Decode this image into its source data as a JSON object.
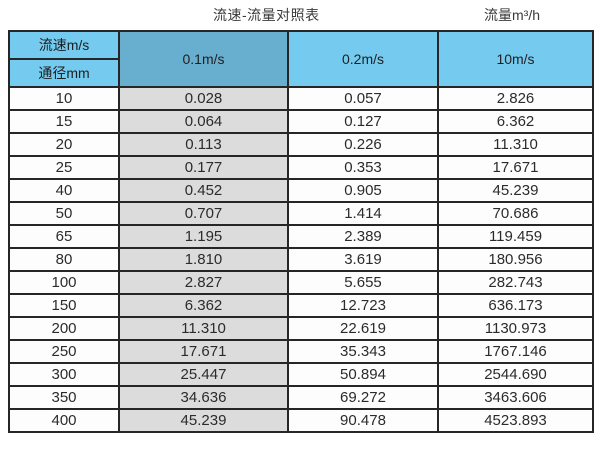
{
  "page": {
    "title": "流速-流量对照表",
    "unit_label": "流量m³/h"
  },
  "colors": {
    "header_blue": "#74cbef",
    "highlight_header_blue": "#68aecf",
    "highlight_column_gray": "#dcdcdc",
    "border": "#262626",
    "text": "#2e2e2e"
  },
  "chart_data": {
    "type": "table",
    "title": "流速-流量对照表",
    "unit_label": "流量m³/h",
    "corner_top": "流速m/s",
    "corner_bottom": "通径mm",
    "columns": [
      "0.1m/s",
      "0.2m/s",
      "10m/s"
    ],
    "rows": [
      {
        "diameter": "10",
        "values": [
          "0.028",
          "0.057",
          "2.826"
        ]
      },
      {
        "diameter": "15",
        "values": [
          "0.064",
          "0.127",
          "6.362"
        ]
      },
      {
        "diameter": "20",
        "values": [
          "0.113",
          "0.226",
          "11.310"
        ]
      },
      {
        "diameter": "25",
        "values": [
          "0.177",
          "0.353",
          "17.671"
        ]
      },
      {
        "diameter": "40",
        "values": [
          "0.452",
          "0.905",
          "45.239"
        ]
      },
      {
        "diameter": "50",
        "values": [
          "0.707",
          "1.414",
          "70.686"
        ]
      },
      {
        "diameter": "65",
        "values": [
          "1.195",
          "2.389",
          "119.459"
        ]
      },
      {
        "diameter": "80",
        "values": [
          "1.810",
          "3.619",
          "180.956"
        ]
      },
      {
        "diameter": "100",
        "values": [
          "2.827",
          "5.655",
          "282.743"
        ]
      },
      {
        "diameter": "150",
        "values": [
          "6.362",
          "12.723",
          "636.173"
        ]
      },
      {
        "diameter": "200",
        "values": [
          "11.310",
          "22.619",
          "1130.973"
        ]
      },
      {
        "diameter": "250",
        "values": [
          "17.671",
          "35.343",
          "1767.146"
        ]
      },
      {
        "diameter": "300",
        "values": [
          "25.447",
          "50.894",
          "2544.690"
        ]
      },
      {
        "diameter": "350",
        "values": [
          "34.636",
          "69.272",
          "3463.606"
        ]
      },
      {
        "diameter": "400",
        "values": [
          "45.239",
          "90.478",
          "4523.893"
        ]
      }
    ]
  }
}
